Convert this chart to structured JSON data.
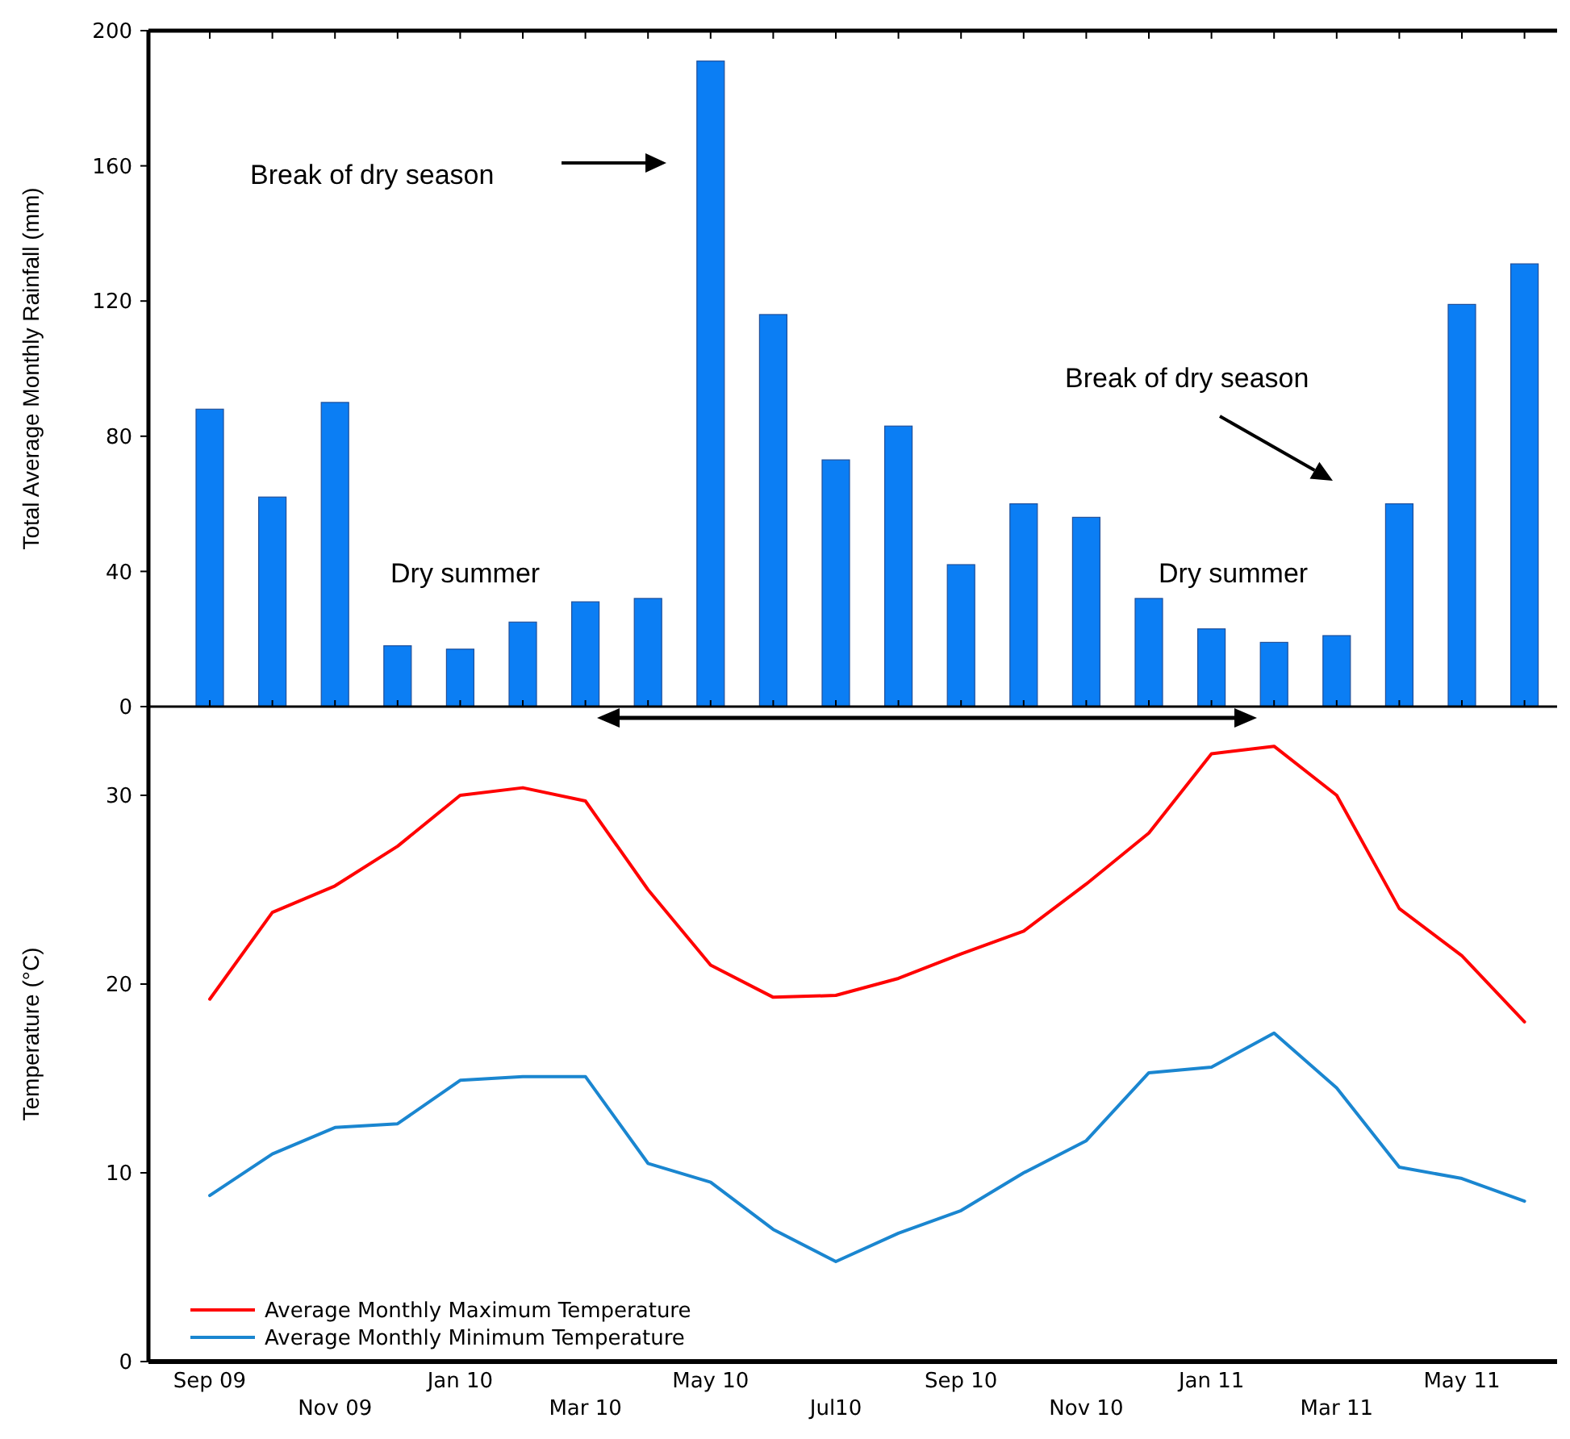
{
  "chart_data": [
    {
      "type": "bar",
      "ylabel": "Total Average Monthly Rainfall (mm)",
      "categories": [
        null,
        null,
        null,
        null,
        null,
        null,
        null,
        null,
        null,
        null,
        null,
        null,
        null,
        null,
        null,
        null,
        null,
        null,
        null,
        null,
        null,
        null
      ],
      "values": [
        88,
        62,
        90,
        18,
        17,
        25,
        31,
        32,
        191,
        116,
        73,
        83,
        42,
        60,
        56,
        32,
        23,
        19,
        21,
        60,
        119,
        131
      ],
      "color": "#0b7ef4",
      "ylim": [
        0,
        200
      ],
      "yticks": [
        0,
        40,
        80,
        120,
        160,
        200
      ],
      "tick_labels": "y",
      "annotations": [
        "Break of dry season",
        "Dry summer",
        "Break of dry season",
        "Dry summer"
      ]
    },
    {
      "type": "line",
      "ylabel": "Temperature (°C)",
      "categories": [
        "Sep 09",
        null,
        "Nov 09",
        null,
        "Jan 10",
        null,
        "Mar 10",
        null,
        "May 10",
        null,
        "Jul10",
        null,
        "Sep 10",
        null,
        "Nov 10",
        null,
        "Jan 11",
        null,
        "Mar 11",
        null,
        "May 11",
        null
      ],
      "series": [
        {
          "name": "Average Monthly Maximum Temperature",
          "color": "#ff0000",
          "values": [
            19.2,
            23.8,
            25.2,
            27.3,
            30.0,
            30.4,
            29.7,
            25.0,
            21.0,
            19.3,
            19.4,
            20.3,
            21.6,
            22.8,
            25.3,
            28.0,
            32.2,
            32.6,
            30.0,
            24.0,
            21.5,
            18.0
          ]
        },
        {
          "name": "Average Monthly Minimum Temperature",
          "color": "#1a86d0",
          "values": [
            8.8,
            11.0,
            12.4,
            12.6,
            14.9,
            15.1,
            15.1,
            10.5,
            9.5,
            7.0,
            5.3,
            6.8,
            8.0,
            10.0,
            11.7,
            15.3,
            15.6,
            17.4,
            14.5,
            10.3,
            9.7,
            8.5
          ]
        }
      ],
      "ylim": [
        0,
        34.7
      ],
      "yticks": [
        0,
        10,
        20,
        30
      ],
      "legend": "bottom left"
    }
  ]
}
